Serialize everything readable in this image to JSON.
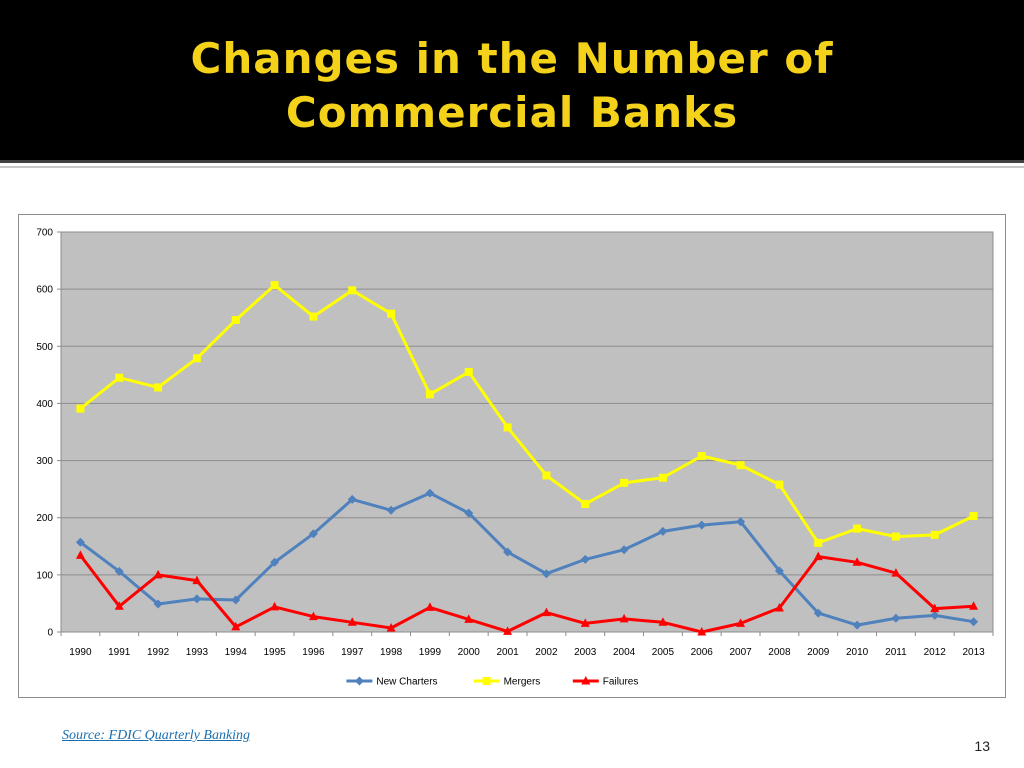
{
  "slide": {
    "title": "Changes in the Number of Commercial Banks",
    "source": "Source: FDIC Quarterly Banking",
    "page_number": "13"
  },
  "chart_data": {
    "type": "line",
    "title": "",
    "xlabel": "",
    "ylabel": "",
    "x": [
      "1990",
      "1991",
      "1992",
      "1993",
      "1994",
      "1995",
      "1996",
      "1997",
      "1998",
      "1999",
      "2000",
      "2001",
      "2002",
      "2003",
      "2004",
      "2005",
      "2006",
      "2007",
      "2008",
      "2009",
      "2010",
      "2011",
      "2012",
      "2013"
    ],
    "ylim": [
      0,
      700
    ],
    "yticks": [
      0,
      100,
      200,
      300,
      400,
      500,
      600,
      700
    ],
    "grid": true,
    "plot_background": "#c0c0c0",
    "legend_position": "bottom",
    "series": [
      {
        "name": "New Charters",
        "color": "#4f81bd",
        "marker": "diamond",
        "values": [
          157,
          106,
          49,
          58,
          56,
          122,
          172,
          232,
          213,
          243,
          208,
          140,
          102,
          127,
          144,
          176,
          187,
          193,
          107,
          33,
          12,
          24,
          29,
          18
        ]
      },
      {
        "name": "Mergers",
        "color": "#ffff00",
        "marker": "square",
        "values": [
          391,
          445,
          428,
          479,
          546,
          607,
          552,
          598,
          557,
          416,
          455,
          358,
          274,
          224,
          261,
          270,
          308,
          292,
          258,
          156,
          181,
          167,
          170,
          203
        ]
      },
      {
        "name": "Failures",
        "color": "#ff0000",
        "marker": "triangle",
        "values": [
          134,
          45,
          100,
          90,
          9,
          44,
          27,
          17,
          7,
          43,
          22,
          1,
          34,
          15,
          23,
          17,
          0,
          15,
          42,
          132,
          122,
          103,
          41,
          45
        ]
      }
    ]
  }
}
